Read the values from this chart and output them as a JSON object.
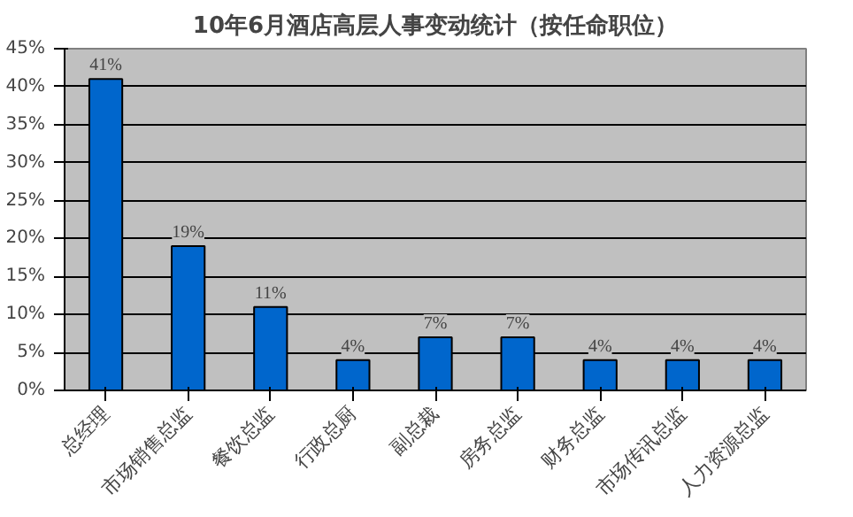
{
  "chart_data": {
    "type": "bar",
    "title": "10年6月酒店高层人事变动统计（按任命职位）",
    "categories": [
      "总经理",
      "市场销售总监",
      "餐饮总监",
      "行政总厨",
      "副总裁",
      "房务总监",
      "财务总监",
      "市场传讯总监",
      "人力资源总监"
    ],
    "values": [
      41,
      19,
      11,
      4,
      7,
      7,
      4,
      4,
      4
    ],
    "value_labels": [
      "41%",
      "19%",
      "11%",
      "4%",
      "7%",
      "7%",
      "4%",
      "4%",
      "4%"
    ],
    "color": "#0066cc",
    "ylim": [
      0,
      45
    ],
    "yticks": [
      {
        "value": 0,
        "label": "0%"
      },
      {
        "value": 5,
        "label": "5%"
      },
      {
        "value": 10,
        "label": "10%"
      },
      {
        "value": 15,
        "label": "15%"
      },
      {
        "value": 20,
        "label": "20%"
      },
      {
        "value": 25,
        "label": "25%"
      },
      {
        "value": 30,
        "label": "30%"
      },
      {
        "value": 35,
        "label": "35%"
      },
      {
        "value": 40,
        "label": "40%"
      },
      {
        "value": 45,
        "label": "45%"
      }
    ],
    "grid": "y"
  }
}
